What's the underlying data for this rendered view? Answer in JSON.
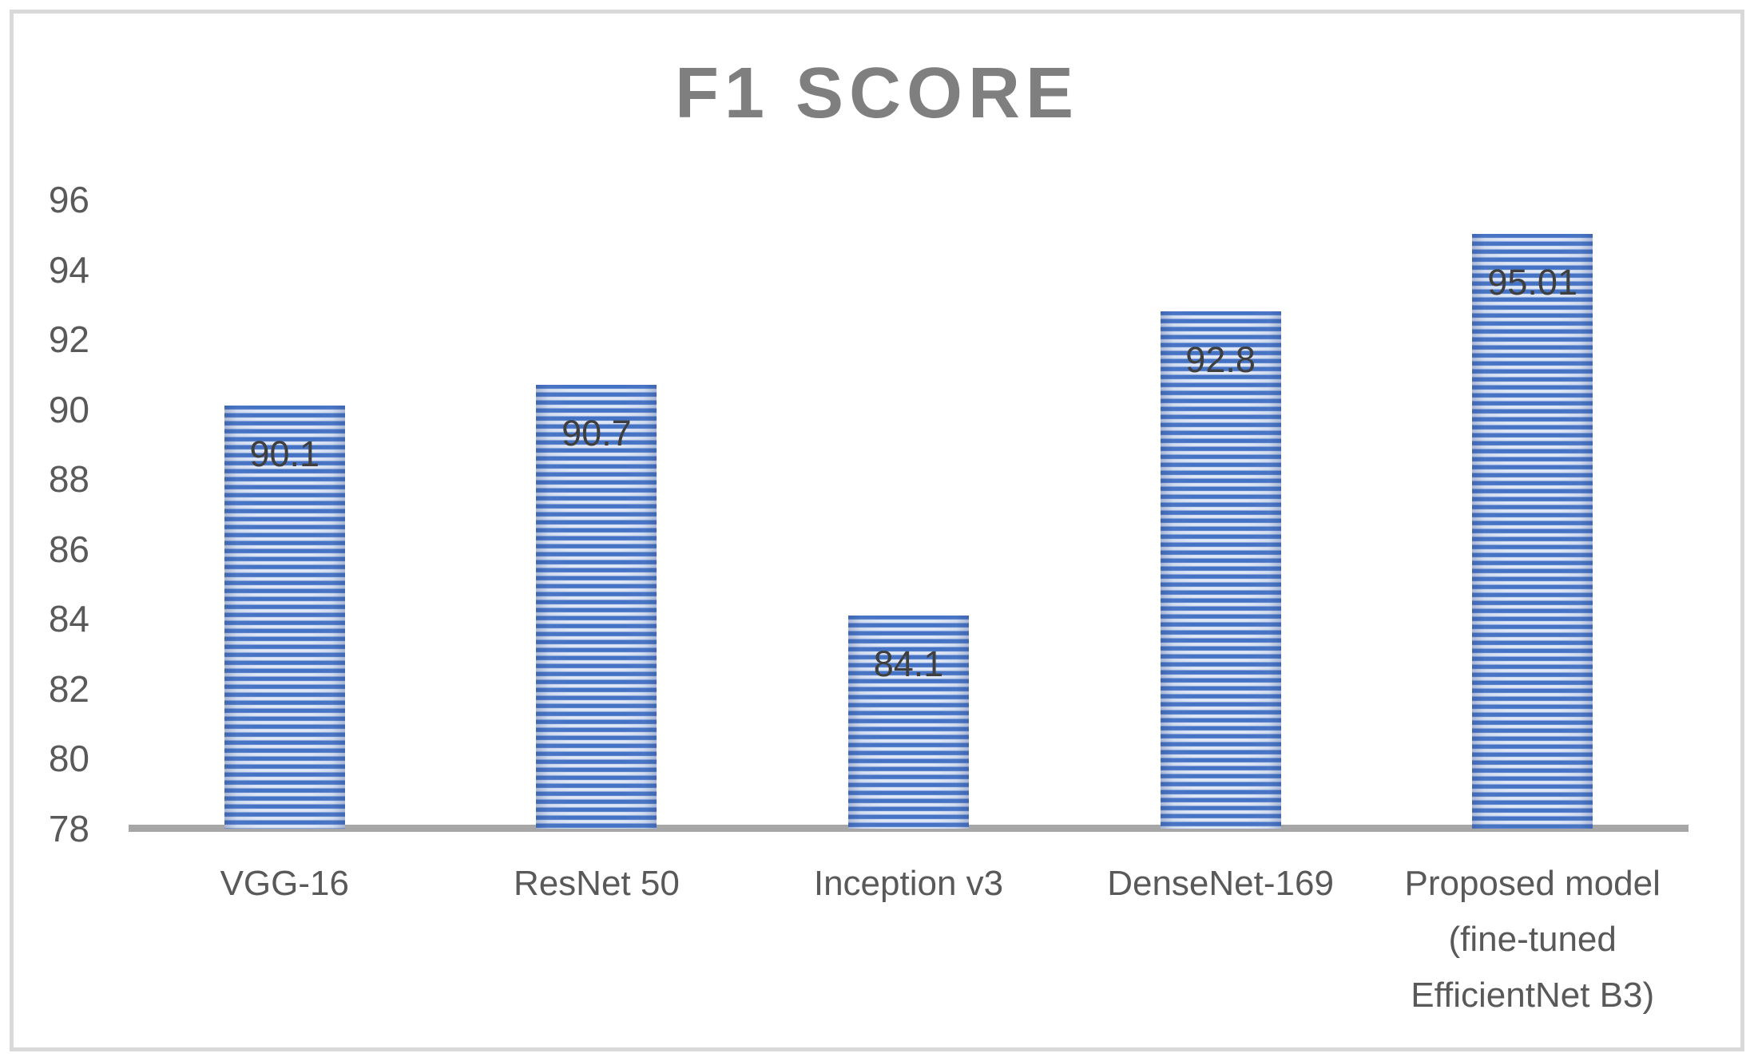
{
  "chart_data": {
    "type": "bar",
    "title": "F1 SCORE",
    "categories": [
      "VGG-16",
      "ResNet 50",
      "Inception v3",
      "DenseNet-169",
      "Proposed model (fine-tuned EfficientNet B3)"
    ],
    "values": [
      90.1,
      90.7,
      84.1,
      92.8,
      95.01
    ],
    "data_labels": [
      "90.1",
      "90.7",
      "84.1",
      "92.8",
      "95.01"
    ],
    "xlabel": "",
    "ylabel": "",
    "ylim": [
      78,
      96
    ],
    "yticks": [
      78,
      80,
      82,
      84,
      86,
      88,
      90,
      92,
      94,
      96
    ],
    "grid": false,
    "legend": false,
    "data_label_position": "inside-end",
    "colors": {
      "bar_stripe_blue": "#4472c4",
      "bar_stripe_light": "#dde6f5",
      "axis_line": "#a6a6a6",
      "frame_border": "#d9d9d9",
      "title_text": "#7f7f7f",
      "tick_text": "#595959",
      "data_label_text": "#3f3f3f",
      "background": "#ffffff"
    }
  }
}
